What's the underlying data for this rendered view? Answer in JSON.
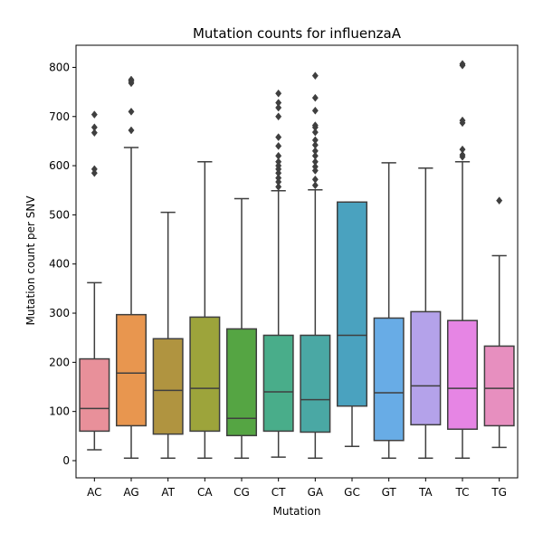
{
  "chart_data": {
    "type": "boxplot",
    "title": "Mutation counts for influenzaA",
    "xlabel": "Mutation",
    "ylabel": "Mutation count per SNV",
    "ylim": [
      -35,
      845
    ],
    "yticks": [
      0,
      100,
      200,
      300,
      400,
      500,
      600,
      700,
      800
    ],
    "categories": [
      "AC",
      "AG",
      "AT",
      "CA",
      "CG",
      "CT",
      "GA",
      "GC",
      "GT",
      "TA",
      "TC",
      "TG"
    ],
    "colors": [
      "#e8909a",
      "#e8964f",
      "#b09440",
      "#9da43b",
      "#55a543",
      "#49ad8a",
      "#4aa8a4",
      "#4aa2bf",
      "#68ace6",
      "#b4a2ea",
      "#e685e4",
      "#e78fbf"
    ],
    "boxes": [
      {
        "whisker_low": 22,
        "q1": 60,
        "median": 106,
        "q3": 207,
        "whisker_high": 362,
        "outliers": [
          585,
          593,
          667,
          678,
          704
        ]
      },
      {
        "whisker_low": 5,
        "q1": 71,
        "median": 178,
        "q3": 297,
        "whisker_high": 637,
        "outliers": [
          672,
          710,
          768,
          772,
          775
        ]
      },
      {
        "whisker_low": 5,
        "q1": 54,
        "median": 143,
        "q3": 248,
        "whisker_high": 505,
        "outliers": []
      },
      {
        "whisker_low": 5,
        "q1": 60,
        "median": 147,
        "q3": 292,
        "whisker_high": 608,
        "outliers": []
      },
      {
        "whisker_low": 5,
        "q1": 51,
        "median": 86,
        "q3": 268,
        "whisker_high": 533,
        "outliers": []
      },
      {
        "whisker_low": 7,
        "q1": 60,
        "median": 140,
        "q3": 255,
        "whisker_high": 549,
        "outliers": [
          557,
          567,
          575,
          585,
          593,
          600,
          608,
          620,
          640,
          658,
          700,
          718,
          728,
          747
        ]
      },
      {
        "whisker_low": 5,
        "q1": 58,
        "median": 124,
        "q3": 255,
        "whisker_high": 551,
        "outliers": [
          560,
          572,
          590,
          598,
          608,
          620,
          630,
          642,
          652,
          668,
          678,
          682,
          712,
          738,
          783
        ]
      },
      {
        "whisker_low": 29,
        "q1": 111,
        "median": 255,
        "q3": 526,
        "whisker_high": 526,
        "outliers": []
      },
      {
        "whisker_low": 5,
        "q1": 41,
        "median": 138,
        "q3": 290,
        "whisker_high": 606,
        "outliers": []
      },
      {
        "whisker_low": 5,
        "q1": 73,
        "median": 152,
        "q3": 303,
        "whisker_high": 595,
        "outliers": []
      },
      {
        "whisker_low": 5,
        "q1": 64,
        "median": 147,
        "q3": 285,
        "whisker_high": 608,
        "outliers": [
          618,
          622,
          633,
          687,
          692,
          804,
          807
        ]
      },
      {
        "whisker_low": 27,
        "q1": 71,
        "median": 147,
        "q3": 233,
        "whisker_high": 417,
        "outliers": [
          529
        ]
      }
    ],
    "grid": false,
    "legend": "none"
  }
}
